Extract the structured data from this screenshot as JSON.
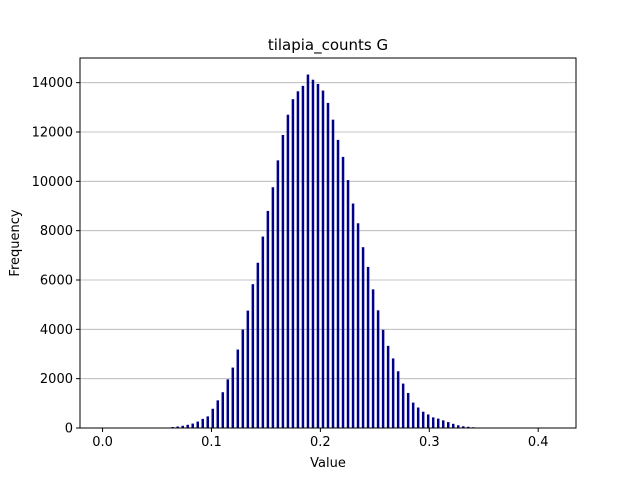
{
  "chart_data": {
    "type": "bar",
    "title": "tilapia_counts G",
    "xlabel": "Value",
    "ylabel": "Frequency",
    "xlim": [
      -0.0207,
      0.4347
    ],
    "ylim": [
      0,
      15000
    ],
    "x_ticks": [
      0.0,
      0.1,
      0.2,
      0.3,
      0.4
    ],
    "x_tick_labels": [
      "0.0",
      "0.1",
      "0.2",
      "0.3",
      "0.4"
    ],
    "y_ticks": [
      0,
      2000,
      4000,
      6000,
      8000,
      10000,
      12000,
      14000
    ],
    "y_tick_labels": [
      "0",
      "2000",
      "4000",
      "6000",
      "8000",
      "10000",
      "12000",
      "14000"
    ],
    "grid": "y",
    "bar_color": "#00008b",
    "bin_width": 0.0023,
    "x": [
      0.0,
      0.0046,
      0.0092,
      0.0138,
      0.0184,
      0.023,
      0.0276,
      0.0322,
      0.0368,
      0.0414,
      0.046,
      0.0506,
      0.0552,
      0.0598,
      0.0644,
      0.069,
      0.0736,
      0.0782,
      0.0828,
      0.0874,
      0.092,
      0.0966,
      0.1012,
      0.1058,
      0.1104,
      0.115,
      0.1196,
      0.1242,
      0.1288,
      0.1334,
      0.138,
      0.1426,
      0.1472,
      0.1518,
      0.1564,
      0.161,
      0.1656,
      0.1702,
      0.1748,
      0.1794,
      0.184,
      0.1886,
      0.1932,
      0.1978,
      0.2024,
      0.207,
      0.2116,
      0.2162,
      0.2208,
      0.2254,
      0.23,
      0.2346,
      0.2392,
      0.2438,
      0.2484,
      0.253,
      0.2576,
      0.2622,
      0.2668,
      0.2714,
      0.276,
      0.2806,
      0.2852,
      0.2898,
      0.2944,
      0.299,
      0.3036,
      0.3082,
      0.3128,
      0.3174,
      0.322,
      0.3266,
      0.3312,
      0.3358,
      0.3404,
      0.345,
      0.3496,
      0.3542,
      0.3588,
      0.3634,
      0.368,
      0.3726,
      0.3772,
      0.3818,
      0.3864,
      0.391,
      0.3956,
      0.4002,
      0.4048,
      0.4094,
      0.414
    ],
    "values": [
      10,
      5,
      5,
      5,
      5,
      5,
      5,
      5,
      5,
      5,
      5,
      10,
      10,
      20,
      40,
      60,
      90,
      130,
      180,
      260,
      370,
      470,
      780,
      1120,
      1450,
      1970,
      2450,
      3180,
      3990,
      4760,
      5830,
      6700,
      7760,
      8800,
      9760,
      10850,
      11880,
      12700,
      13330,
      13650,
      13870,
      14330,
      14120,
      13950,
      13680,
      13180,
      12500,
      11680,
      10990,
      10050,
      9100,
      8300,
      7330,
      6530,
      5620,
      4770,
      3980,
      3330,
      2820,
      2300,
      1800,
      1420,
      1030,
      830,
      660,
      550,
      430,
      380,
      310,
      240,
      170,
      110,
      70,
      50,
      30,
      20,
      10,
      10,
      5,
      5,
      5,
      5,
      5,
      5,
      5,
      5,
      5,
      5,
      5,
      5,
      10
    ]
  }
}
